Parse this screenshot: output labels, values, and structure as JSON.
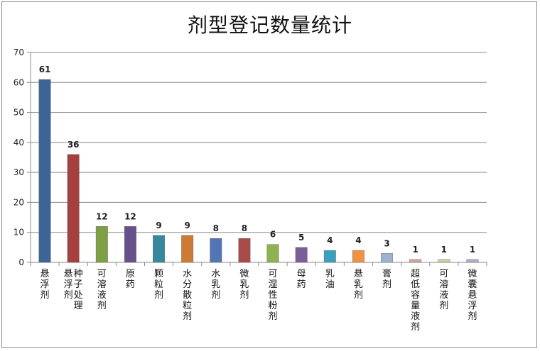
{
  "chart_data": {
    "type": "bar",
    "title": "剂型登记数量统计",
    "xlabel": "",
    "ylabel": "",
    "ylim": [
      0,
      70
    ],
    "yticks": [
      0,
      10,
      20,
      30,
      40,
      50,
      60,
      70
    ],
    "grid": true,
    "legend": "none",
    "categories": [
      "悬浮剂",
      "悬浮剂 种子处理",
      "可溶液剂",
      "原药",
      "颗粒剂",
      "水分散粒剂",
      "水乳剂",
      "微乳剂",
      "可湿性粉剂",
      "母药",
      "乳油",
      "悬乳剂",
      "膏剂",
      "超低容量液剂",
      "可溶液剂",
      "微囊悬浮剂"
    ],
    "category_columns": [
      [
        "悬浮剂"
      ],
      [
        "悬浮剂",
        "种子处理"
      ],
      [
        "可溶液剂"
      ],
      [
        "原药"
      ],
      [
        "颗粒剂"
      ],
      [
        "水分散粒剂"
      ],
      [
        "水乳剂"
      ],
      [
        "微乳剂"
      ],
      [
        "可湿性粉剂"
      ],
      [
        "母药"
      ],
      [
        "乳油"
      ],
      [
        "悬乳剂"
      ],
      [
        "膏剂"
      ],
      [
        "超低容量液剂"
      ],
      [
        "可溶液剂"
      ],
      [
        "微囊悬浮剂"
      ]
    ],
    "values": [
      61,
      36,
      12,
      12,
      9,
      9,
      8,
      8,
      6,
      5,
      4,
      4,
      3,
      1,
      1,
      1
    ],
    "colors": [
      "#3C6497",
      "#A5403D",
      "#7F9F45",
      "#67518A",
      "#37879E",
      "#CC7A34",
      "#5276B4",
      "#A84C49",
      "#8EB251",
      "#7A5E9C",
      "#3BA0BE",
      "#EE9444",
      "#9EB2CF",
      "#D4A3A1",
      "#C4D4A2",
      "#B7AAC8"
    ]
  }
}
